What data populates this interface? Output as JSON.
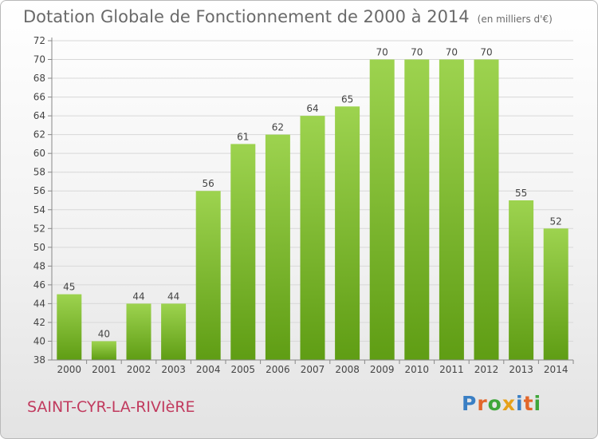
{
  "header": {
    "title": "Dotation Globale de Fonctionnement de 2000 à 2014",
    "unit": "(en milliers d'€)"
  },
  "footer": {
    "commune": "SAINT-CYR-LA-RIVIèRE",
    "logo": "Proxiti"
  },
  "colors": {
    "bar_top": "#9dd34f",
    "bar_bottom": "#5f9d14",
    "grid": "#d8d8d8",
    "axis": "#888888",
    "label": "#444444"
  },
  "chart_data": {
    "type": "bar",
    "categories": [
      "2000",
      "2001",
      "2002",
      "2003",
      "2004",
      "2005",
      "2006",
      "2007",
      "2008",
      "2009",
      "2010",
      "2011",
      "2012",
      "2013",
      "2014"
    ],
    "values": [
      45,
      40,
      44,
      44,
      56,
      61,
      62,
      64,
      65,
      70,
      70,
      70,
      70,
      55,
      52
    ],
    "title": "Dotation Globale de Fonctionnement de 2000 à 2014",
    "subtitle": "(en milliers d'€)",
    "ylim": [
      38,
      72
    ],
    "yticks": [
      38,
      40,
      42,
      44,
      46,
      48,
      50,
      52,
      54,
      56,
      58,
      60,
      62,
      64,
      66,
      68,
      70,
      72
    ],
    "grid": true,
    "data_labels": true
  }
}
